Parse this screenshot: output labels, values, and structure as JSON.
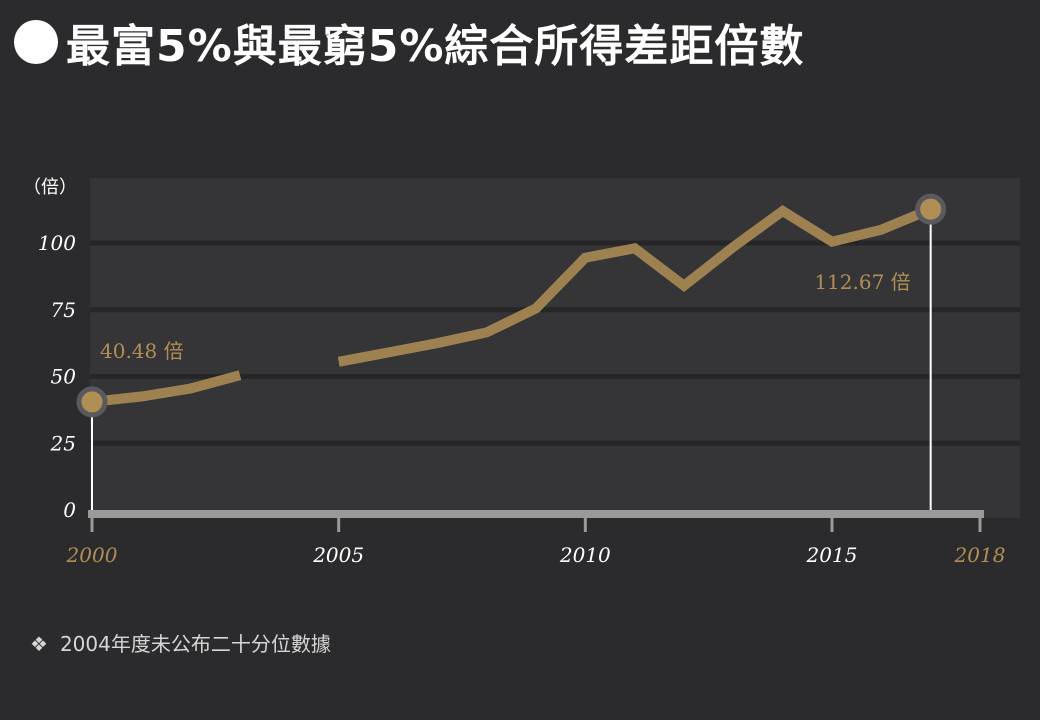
{
  "title": "最富5%與最窮5%綜合所得差距倍數",
  "footnote": {
    "symbol": "❖",
    "text": "2004年度未公布二十分位數據"
  },
  "colors": {
    "line": "#9e8150",
    "accent_text": "#b08f55",
    "plot_bg": "#353437",
    "gridline": "#262528",
    "baseline": "#9a9a9a"
  },
  "chart_data": {
    "type": "line",
    "title": "最富5%與最窮5%綜合所得差距倍數",
    "ylabel": "（倍）",
    "xlabel": "",
    "xlim": [
      2000,
      2018
    ],
    "ylim": [
      0,
      125
    ],
    "y_ticks": [
      0,
      25,
      50,
      75,
      100
    ],
    "x_ticks": [
      {
        "value": 2000,
        "label": "2000",
        "accent": true
      },
      {
        "value": 2005,
        "label": "2005",
        "accent": false
      },
      {
        "value": 2010,
        "label": "2010",
        "accent": false
      },
      {
        "value": 2015,
        "label": "2015",
        "accent": false
      },
      {
        "value": 2018,
        "label": "2018",
        "accent": true
      }
    ],
    "grid": true,
    "series": [
      {
        "segments": [
          [
            [
              2000,
              40.48
            ],
            [
              2001,
              42.5
            ],
            [
              2002,
              45.5
            ],
            [
              2003,
              50.5
            ]
          ],
          [
            [
              2005,
              55.5
            ],
            [
              2006,
              59
            ],
            [
              2007,
              62.5
            ],
            [
              2008,
              66.5
            ],
            [
              2009,
              75.5
            ],
            [
              2010,
              94.5
            ],
            [
              2011,
              98
            ],
            [
              2012,
              84
            ],
            [
              2013,
              98.5
            ],
            [
              2014,
              112
            ],
            [
              2015,
              100.5
            ],
            [
              2016,
              105
            ],
            [
              2017,
              112.67
            ]
          ]
        ]
      }
    ],
    "annotations": [
      {
        "x": 2000,
        "y": 40.48,
        "label": "40.48 倍"
      },
      {
        "x": 2017,
        "y": 112.67,
        "label": "112.67 倍"
      }
    ]
  }
}
